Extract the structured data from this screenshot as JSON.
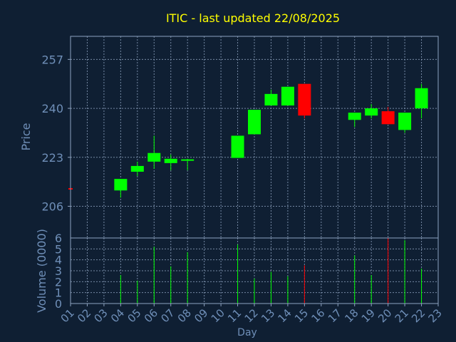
{
  "chart_data": [
    {
      "type": "candlestick",
      "title": "ITIC - last updated 22/08/2025",
      "ylabel": "Price",
      "xlabel": "Day",
      "ylim": [
        195,
        265
      ],
      "yticks": [
        206,
        223,
        240,
        257
      ],
      "grid": true,
      "x_categories": [
        "01",
        "02",
        "03",
        "04",
        "05",
        "06",
        "07",
        "08",
        "09",
        "10",
        "11",
        "12",
        "13",
        "14",
        "15",
        "16",
        "17",
        "18",
        "19",
        "20",
        "21",
        "22",
        "23"
      ],
      "candles": [
        {
          "day": "01",
          "open": 212.3,
          "close": 212.3,
          "high": 212.3,
          "low": 212.3,
          "color": "#ff0000"
        },
        {
          "day": "04",
          "open": 211.5,
          "close": 215.5,
          "high": 215.5,
          "low": 209.0,
          "color": "#00ff00"
        },
        {
          "day": "05",
          "open": 218.0,
          "close": 220.0,
          "high": 221.5,
          "low": 216.5,
          "color": "#00ff00"
        },
        {
          "day": "06",
          "open": 221.5,
          "close": 224.5,
          "high": 230.5,
          "low": 219.0,
          "color": "#00ff00"
        },
        {
          "day": "07",
          "open": 221.0,
          "close": 222.5,
          "high": 224.0,
          "low": 218.5,
          "color": "#00ff00"
        },
        {
          "day": "08",
          "open": 221.8,
          "close": 222.3,
          "high": 222.5,
          "low": 218.5,
          "color": "#00ff00"
        },
        {
          "day": "11",
          "open": 222.8,
          "close": 230.5,
          "high": 230.5,
          "low": 222.8,
          "color": "#00ff00"
        },
        {
          "day": "12",
          "open": 231.0,
          "close": 239.5,
          "high": 239.5,
          "low": 231.0,
          "color": "#00ff00"
        },
        {
          "day": "13",
          "open": 241.0,
          "close": 245.0,
          "high": 246.5,
          "low": 241.0,
          "color": "#00ff00"
        },
        {
          "day": "14",
          "open": 241.0,
          "close": 247.5,
          "high": 247.5,
          "low": 241.0,
          "color": "#00ff00"
        },
        {
          "day": "15",
          "open": 248.5,
          "close": 237.5,
          "high": 248.5,
          "low": 236.5,
          "color": "#ff0000"
        },
        {
          "day": "18",
          "open": 236.0,
          "close": 238.5,
          "high": 238.5,
          "low": 233.5,
          "color": "#00ff00"
        },
        {
          "day": "19",
          "open": 237.5,
          "close": 240.0,
          "high": 241.5,
          "low": 236.5,
          "color": "#00ff00"
        },
        {
          "day": "20",
          "open": 239.0,
          "close": 234.5,
          "high": 240.5,
          "low": 234.5,
          "color": "#ff0000"
        },
        {
          "day": "21",
          "open": 232.5,
          "close": 238.5,
          "high": 238.5,
          "low": 231.5,
          "color": "#00ff00"
        },
        {
          "day": "22",
          "open": 240.0,
          "close": 247.0,
          "high": 248.5,
          "low": 236.5,
          "color": "#00ff00"
        }
      ]
    },
    {
      "type": "bar",
      "ylabel": "Volume (0000)",
      "ylim": [
        0,
        6
      ],
      "yticks": [
        0,
        1,
        2,
        3,
        4,
        5,
        6
      ],
      "categories": [
        "01",
        "04",
        "05",
        "06",
        "07",
        "08",
        "11",
        "12",
        "13",
        "14",
        "15",
        "18",
        "19",
        "20",
        "21",
        "22"
      ],
      "values": [
        0,
        2.6,
        2.1,
        5.2,
        3.4,
        4.7,
        5.4,
        2.3,
        2.9,
        2.5,
        3.5,
        4.4,
        2.6,
        6.0,
        5.8,
        3.2
      ],
      "colors": [
        "#ff0000",
        "#00ff00",
        "#00ff00",
        "#00ff00",
        "#00ff00",
        "#00ff00",
        "#00ff00",
        "#00ff00",
        "#00ff00",
        "#00ff00",
        "#ff0000",
        "#00ff00",
        "#00ff00",
        "#ff0000",
        "#00ff00",
        "#00ff00"
      ]
    }
  ],
  "colors": {
    "background": "#0f1f33",
    "title": "#ffff00",
    "axis_text": "#6f8fb8",
    "plot_border": "#8ea3c0",
    "grid": "#8ea3c0",
    "up": "#00ff00",
    "down": "#ff0000"
  }
}
